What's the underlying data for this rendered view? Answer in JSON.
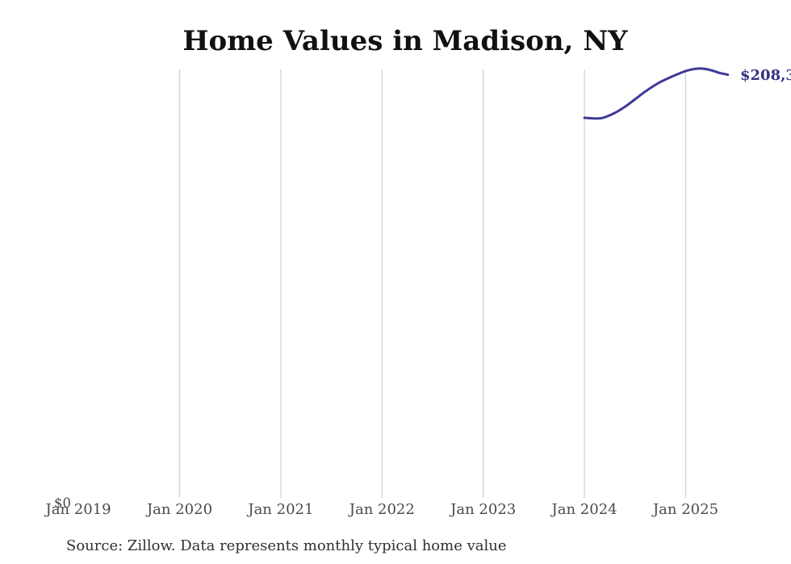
{
  "title": "Home Values in Madison, NY",
  "source_note": "Source: Zillow. Data represents monthly typical home value",
  "end_value_label": "$208,3",
  "colors": {
    "background": "#ffffff",
    "title_text": "#111111",
    "axis_text": "#4a4a4a",
    "source_text": "#303030",
    "grid": "#d5d5d5",
    "line": "#3e3a98",
    "end_label": "#31317e"
  },
  "chart_data": {
    "type": "line",
    "title": "Home Values in Madison, NY",
    "xlabel": "",
    "ylabel": "",
    "x_tick_labels": [
      "Jan 2019",
      "Jan 2020",
      "Jan 2021",
      "Jan 2022",
      "Jan 2023",
      "Jan 2024",
      "Jan 2025"
    ],
    "y_tick_labels": [
      "$0"
    ],
    "ylim": [
      0,
      211500
    ],
    "xlim": [
      "Jan 2019",
      "Jul 2025"
    ],
    "grid": "vertical gridlines only, none at Jan 2019",
    "legend_position": "none",
    "end_annotation": "$208,3",
    "series": [
      {
        "months": [
          "Jan 2024",
          "Feb 2024",
          "Mar 2024",
          "Apr 2024",
          "May 2024",
          "Jun 2024",
          "Jul 2024",
          "Aug 2024",
          "Sep 2024",
          "Oct 2024",
          "Nov 2024",
          "Dec 2024",
          "Jan 2025",
          "Feb 2025",
          "Mar 2025",
          "Apr 2025",
          "May 2025",
          "Jun 2025"
        ],
        "values": [
          187100,
          186800,
          186900,
          188300,
          190400,
          193100,
          196200,
          199400,
          202200,
          204700,
          206700,
          208500,
          210100,
          211100,
          211300,
          210500,
          209200,
          208300
        ]
      }
    ]
  }
}
